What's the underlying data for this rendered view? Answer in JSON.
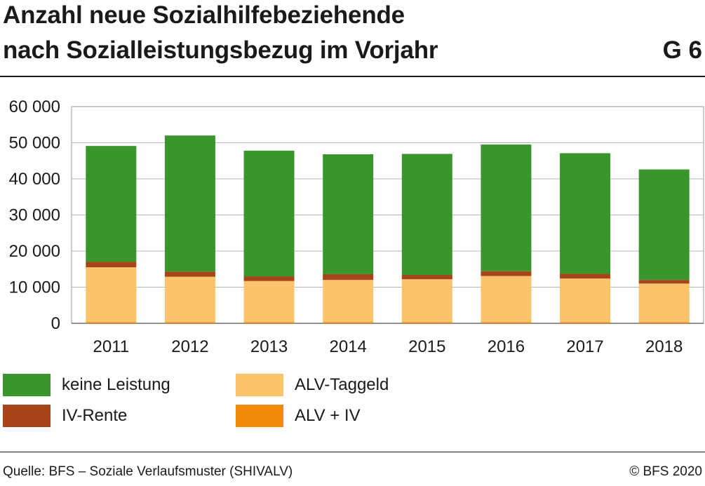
{
  "header": {
    "title_line1": "Anzahl neue Sozialhilfebeziehende",
    "title_line2": "nach Sozialleistungsbezug im Vorjahr",
    "figure_id": "G 6"
  },
  "footer": {
    "source": "Quelle: BFS – Soziale Verlaufsmuster (SHIVALV)",
    "copyright": "© BFS 2020"
  },
  "legend": [
    {
      "label": "keine Leistung",
      "color": "#3a962c"
    },
    {
      "label": "ALV-Taggeld",
      "color": "#fbc46b"
    },
    {
      "label": "IV-Rente",
      "color": "#a8441a"
    },
    {
      "label": "ALV + IV",
      "color": "#ef8a0a"
    }
  ],
  "chart_data": {
    "type": "bar",
    "stacked": true,
    "categories": [
      "2011",
      "2012",
      "2013",
      "2014",
      "2015",
      "2016",
      "2017",
      "2018"
    ],
    "series": [
      {
        "name": "ALV + IV",
        "color": "#ef8a0a",
        "values": [
          300,
          300,
          300,
          300,
          300,
          300,
          300,
          300
        ]
      },
      {
        "name": "ALV-Taggeld",
        "color": "#fbc46b",
        "values": [
          15200,
          12600,
          11400,
          11700,
          11900,
          12800,
          12100,
          10700
        ]
      },
      {
        "name": "IV-Rente",
        "color": "#a8441a",
        "values": [
          1500,
          1400,
          1300,
          1600,
          1200,
          1300,
          1300,
          1000
        ]
      },
      {
        "name": "keine Leistung",
        "color": "#3a962c",
        "values": [
          32100,
          37700,
          34800,
          33200,
          33500,
          35100,
          33400,
          30600
        ]
      }
    ],
    "ylim": [
      0,
      60000
    ],
    "yticks": [
      0,
      10000,
      20000,
      30000,
      40000,
      50000,
      60000
    ],
    "ytick_labels": [
      "0",
      "10 000",
      "20 000",
      "30 000",
      "40 000",
      "50 000",
      "60 000"
    ],
    "grid": true,
    "legend_position": "bottom"
  }
}
